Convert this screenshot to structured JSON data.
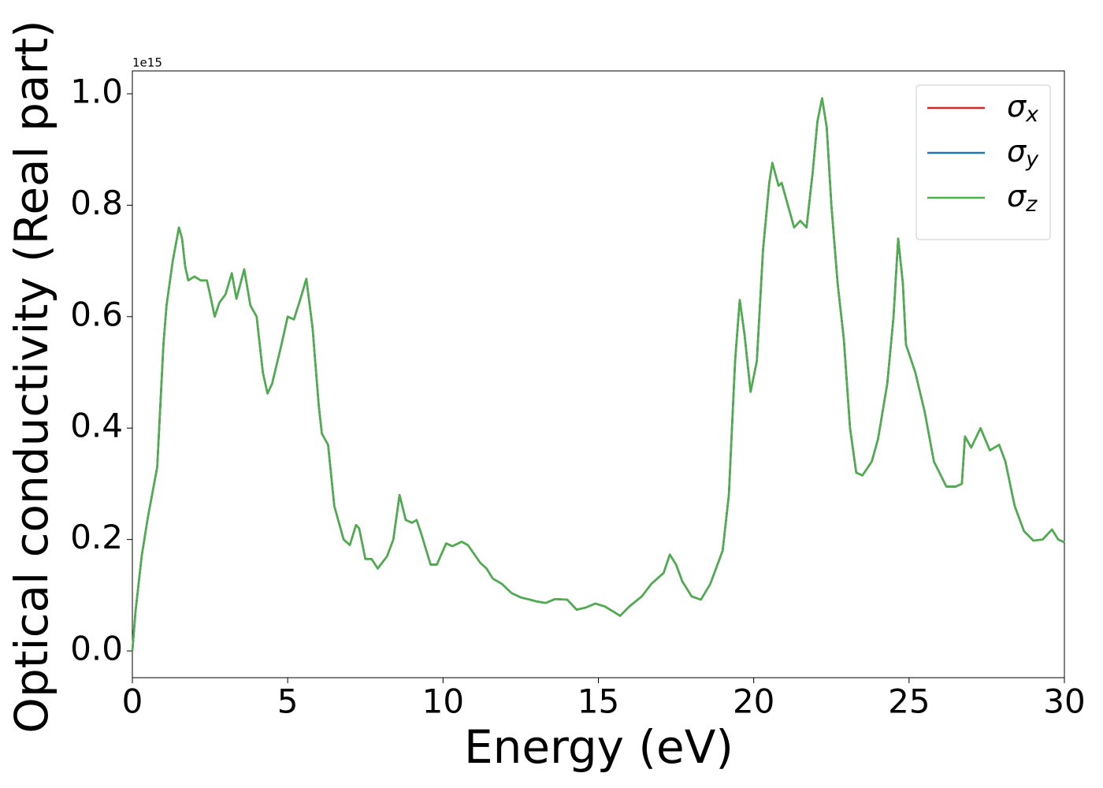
{
  "chart_data": {
    "type": "line",
    "x_label": "Energy (eV)",
    "y_label": "Optical conductivity (Real part)",
    "y_offset_label": "1e15",
    "xlim": [
      0,
      30
    ],
    "ylim": [
      -0.048,
      1.041
    ],
    "xticks": [
      0,
      5,
      10,
      15,
      20,
      25,
      30
    ],
    "yticks": [
      {
        "value": 0,
        "label": "0.0"
      },
      {
        "value": 0.2,
        "label": "0.2"
      },
      {
        "value": 0.4,
        "label": "0.4"
      },
      {
        "value": 0.6,
        "label": "0.6"
      },
      {
        "value": 0.8,
        "label": "0.8"
      },
      {
        "value": 1.0,
        "label": "1.0"
      }
    ],
    "legend": "upper right",
    "x": [
      0,
      0.1,
      0.3,
      0.5,
      0.8,
      1.0,
      1.1,
      1.3,
      1.5,
      1.6,
      1.7,
      1.8,
      2.0,
      2.2,
      2.4,
      2.5,
      2.65,
      2.8,
      3.0,
      3.2,
      3.35,
      3.6,
      3.8,
      4.0,
      4.2,
      4.35,
      4.5,
      4.8,
      5.0,
      5.2,
      5.4,
      5.6,
      5.8,
      6.0,
      6.1,
      6.3,
      6.5,
      6.8,
      7.0,
      7.2,
      7.3,
      7.5,
      7.7,
      7.9,
      8.2,
      8.4,
      8.6,
      8.8,
      9.0,
      9.15,
      9.3,
      9.6,
      9.8,
      10.1,
      10.3,
      10.6,
      10.8,
      11.2,
      11.4,
      11.6,
      11.9,
      12.2,
      12.5,
      12.8,
      13.0,
      13.3,
      13.6,
      14.0,
      14.3,
      14.6,
      14.9,
      15.2,
      15.5,
      15.7,
      16.0,
      16.4,
      16.7,
      17.1,
      17.3,
      17.5,
      17.7,
      18.0,
      18.3,
      18.6,
      19.0,
      19.2,
      19.4,
      19.55,
      19.7,
      19.9,
      20.1,
      20.3,
      20.5,
      20.6,
      20.8,
      20.9,
      21.1,
      21.3,
      21.5,
      21.7,
      21.9,
      22.05,
      22.2,
      22.35,
      22.5,
      22.7,
      22.9,
      23.1,
      23.3,
      23.5,
      23.8,
      24.0,
      24.3,
      24.5,
      24.65,
      24.8,
      24.9,
      25.2,
      25.5,
      25.8,
      26.2,
      26.5,
      26.7,
      26.8,
      27.0,
      27.3,
      27.6,
      27.9,
      28.1,
      28.4,
      28.7,
      29.0,
      29.3,
      29.6,
      29.8,
      30.0
    ],
    "series": [
      {
        "name": "σx",
        "color": "#d62728",
        "values": [
          0.0,
          0.07,
          0.17,
          0.24,
          0.33,
          0.55,
          0.62,
          0.7,
          0.76,
          0.74,
          0.69,
          0.665,
          0.672,
          0.665,
          0.665,
          0.64,
          0.6,
          0.625,
          0.64,
          0.678,
          0.632,
          0.685,
          0.62,
          0.6,
          0.5,
          0.462,
          0.48,
          0.55,
          0.6,
          0.595,
          0.63,
          0.668,
          0.58,
          0.44,
          0.39,
          0.37,
          0.26,
          0.2,
          0.19,
          0.226,
          0.22,
          0.165,
          0.165,
          0.148,
          0.17,
          0.2,
          0.28,
          0.235,
          0.23,
          0.235,
          0.21,
          0.155,
          0.155,
          0.193,
          0.188,
          0.196,
          0.19,
          0.158,
          0.148,
          0.13,
          0.12,
          0.104,
          0.096,
          0.092,
          0.089,
          0.086,
          0.093,
          0.092,
          0.074,
          0.078,
          0.085,
          0.08,
          0.07,
          0.063,
          0.08,
          0.098,
          0.12,
          0.14,
          0.173,
          0.155,
          0.125,
          0.098,
          0.092,
          0.12,
          0.18,
          0.28,
          0.52,
          0.63,
          0.57,
          0.465,
          0.52,
          0.72,
          0.84,
          0.876,
          0.835,
          0.84,
          0.8,
          0.76,
          0.772,
          0.76,
          0.86,
          0.95,
          0.992,
          0.94,
          0.8,
          0.66,
          0.56,
          0.4,
          0.32,
          0.315,
          0.34,
          0.38,
          0.48,
          0.6,
          0.74,
          0.66,
          0.55,
          0.5,
          0.43,
          0.34,
          0.295,
          0.295,
          0.3,
          0.385,
          0.365,
          0.4,
          0.36,
          0.37,
          0.34,
          0.26,
          0.215,
          0.198,
          0.2,
          0.218,
          0.2,
          0.195
        ]
      },
      {
        "name": "σy",
        "color": "#1f77b4",
        "values": [
          0.0,
          0.07,
          0.17,
          0.24,
          0.33,
          0.55,
          0.62,
          0.7,
          0.76,
          0.74,
          0.69,
          0.665,
          0.672,
          0.665,
          0.665,
          0.64,
          0.6,
          0.625,
          0.64,
          0.678,
          0.632,
          0.685,
          0.62,
          0.6,
          0.5,
          0.462,
          0.48,
          0.55,
          0.6,
          0.595,
          0.63,
          0.668,
          0.58,
          0.44,
          0.39,
          0.37,
          0.26,
          0.2,
          0.19,
          0.226,
          0.22,
          0.165,
          0.165,
          0.148,
          0.17,
          0.2,
          0.28,
          0.235,
          0.23,
          0.235,
          0.21,
          0.155,
          0.155,
          0.193,
          0.188,
          0.196,
          0.19,
          0.158,
          0.148,
          0.13,
          0.12,
          0.104,
          0.096,
          0.092,
          0.089,
          0.086,
          0.093,
          0.092,
          0.074,
          0.078,
          0.085,
          0.08,
          0.07,
          0.063,
          0.08,
          0.098,
          0.12,
          0.14,
          0.173,
          0.155,
          0.125,
          0.098,
          0.092,
          0.12,
          0.18,
          0.28,
          0.52,
          0.63,
          0.57,
          0.465,
          0.52,
          0.72,
          0.84,
          0.876,
          0.835,
          0.84,
          0.8,
          0.76,
          0.772,
          0.76,
          0.86,
          0.95,
          0.992,
          0.94,
          0.8,
          0.66,
          0.56,
          0.4,
          0.32,
          0.315,
          0.34,
          0.38,
          0.48,
          0.6,
          0.74,
          0.66,
          0.55,
          0.5,
          0.43,
          0.34,
          0.295,
          0.295,
          0.3,
          0.385,
          0.365,
          0.4,
          0.36,
          0.37,
          0.34,
          0.26,
          0.215,
          0.198,
          0.2,
          0.218,
          0.2,
          0.195
        ]
      },
      {
        "name": "σz",
        "color": "#4daf4a",
        "values": [
          0.0,
          0.07,
          0.17,
          0.24,
          0.33,
          0.55,
          0.62,
          0.7,
          0.76,
          0.74,
          0.69,
          0.665,
          0.672,
          0.665,
          0.665,
          0.64,
          0.6,
          0.625,
          0.64,
          0.678,
          0.632,
          0.685,
          0.62,
          0.6,
          0.5,
          0.462,
          0.48,
          0.55,
          0.6,
          0.595,
          0.63,
          0.668,
          0.58,
          0.44,
          0.39,
          0.37,
          0.26,
          0.2,
          0.19,
          0.226,
          0.22,
          0.165,
          0.165,
          0.148,
          0.17,
          0.2,
          0.28,
          0.235,
          0.23,
          0.235,
          0.21,
          0.155,
          0.155,
          0.193,
          0.188,
          0.196,
          0.19,
          0.158,
          0.148,
          0.13,
          0.12,
          0.104,
          0.096,
          0.092,
          0.089,
          0.086,
          0.093,
          0.092,
          0.074,
          0.078,
          0.085,
          0.08,
          0.07,
          0.063,
          0.08,
          0.098,
          0.12,
          0.14,
          0.173,
          0.155,
          0.125,
          0.098,
          0.092,
          0.12,
          0.18,
          0.28,
          0.52,
          0.63,
          0.57,
          0.465,
          0.52,
          0.72,
          0.84,
          0.876,
          0.835,
          0.84,
          0.8,
          0.76,
          0.772,
          0.76,
          0.86,
          0.95,
          0.992,
          0.94,
          0.8,
          0.66,
          0.56,
          0.4,
          0.32,
          0.315,
          0.34,
          0.38,
          0.48,
          0.6,
          0.74,
          0.66,
          0.55,
          0.5,
          0.43,
          0.34,
          0.295,
          0.295,
          0.3,
          0.385,
          0.365,
          0.4,
          0.36,
          0.37,
          0.34,
          0.26,
          0.215,
          0.198,
          0.2,
          0.218,
          0.2,
          0.195
        ]
      }
    ]
  }
}
